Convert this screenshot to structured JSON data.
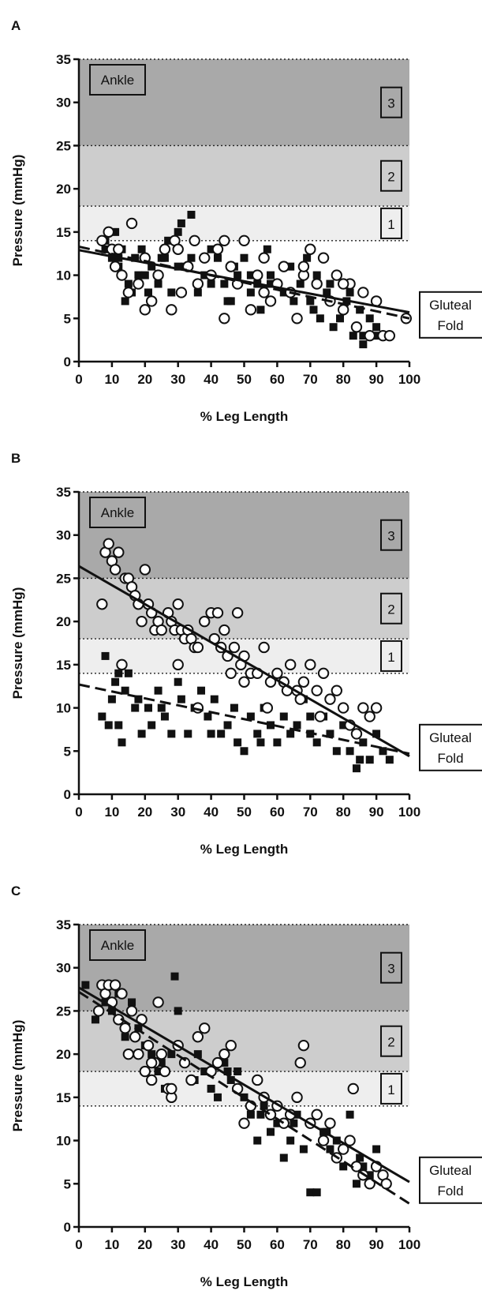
{
  "chart_data": [
    {
      "type": "scatter",
      "panel": "A",
      "xlabel": "% Leg Length",
      "ylabel": "Pressure (mmHg)",
      "xlim": [
        0,
        100
      ],
      "ylim": [
        0,
        35
      ],
      "xticks": [
        0,
        10,
        20,
        30,
        40,
        50,
        60,
        70,
        80,
        90,
        100
      ],
      "yticks": [
        0,
        5,
        10,
        15,
        20,
        25,
        30,
        35
      ],
      "zones": [
        {
          "label": "1",
          "from": 14,
          "to": 18,
          "color": "#eeeeee"
        },
        {
          "label": "2",
          "from": 18,
          "to": 25,
          "color": "#cdcdcd"
        },
        {
          "label": "3",
          "from": 25,
          "to": 35,
          "color": "#a9a9a9"
        }
      ],
      "annotations": {
        "ankle": "Ankle",
        "gluteal": [
          "Gluteal",
          "Fold"
        ]
      },
      "series": [
        {
          "marker": "square",
          "x": [
            8,
            10,
            11,
            12,
            13,
            14,
            15,
            17,
            18,
            19,
            21,
            22,
            24,
            25,
            27,
            28,
            30,
            31,
            32,
            34,
            36,
            38,
            40,
            42,
            44,
            45,
            47,
            48,
            50,
            52,
            54,
            55,
            57,
            58,
            60,
            62,
            64,
            65,
            67,
            69,
            71,
            72,
            73,
            75,
            77,
            79,
            81,
            83,
            85,
            86,
            88,
            90,
            8,
            12,
            16,
            20,
            26,
            30,
            34,
            40,
            46,
            52,
            58,
            64,
            70,
            76,
            82,
            86,
            90
          ],
          "y": [
            14,
            12,
            15,
            11,
            13,
            7,
            9,
            12,
            10,
            13,
            8,
            11,
            9,
            12,
            14,
            8,
            15,
            16,
            11,
            17,
            8,
            10,
            13,
            12,
            9,
            7,
            11,
            10,
            12,
            8,
            9,
            6,
            13,
            10,
            9,
            8,
            11,
            7,
            9,
            12,
            6,
            10,
            5,
            8,
            4,
            5,
            7,
            3,
            6,
            2,
            5,
            4,
            13,
            12,
            8,
            10,
            12,
            11,
            12,
            9,
            7,
            10,
            9,
            8,
            7,
            9,
            8,
            3,
            3
          ],
          "fit": [
            [
              0,
              13.3
            ],
            [
              100,
              5.0
            ]
          ]
        },
        {
          "marker": "circle",
          "x": [
            7,
            9,
            10,
            11,
            13,
            15,
            16,
            18,
            20,
            22,
            24,
            26,
            28,
            29,
            31,
            33,
            35,
            36,
            38,
            40,
            42,
            44,
            46,
            48,
            50,
            52,
            54,
            56,
            58,
            60,
            62,
            64,
            66,
            68,
            70,
            72,
            74,
            76,
            78,
            80,
            82,
            84,
            86,
            88,
            90,
            92,
            94,
            99,
            12,
            20,
            30,
            44,
            56,
            68,
            80
          ],
          "y": [
            14,
            15,
            13,
            11,
            10,
            8,
            16,
            9,
            12,
            7,
            10,
            13,
            6,
            14,
            8,
            11,
            14,
            9,
            12,
            10,
            13,
            5,
            11,
            9,
            14,
            6,
            10,
            12,
            7,
            9,
            11,
            8,
            5,
            10,
            13,
            9,
            12,
            7,
            10,
            6,
            9,
            4,
            8,
            3,
            7,
            3,
            3,
            5,
            13,
            6,
            13,
            14,
            8,
            11,
            9
          ],
          "fit": [
            [
              0,
              12.9
            ],
            [
              100,
              5.7
            ]
          ]
        }
      ]
    },
    {
      "type": "scatter",
      "panel": "B",
      "xlabel": "% Leg Length",
      "ylabel": "Pressure (mmHg)",
      "xlim": [
        0,
        100
      ],
      "ylim": [
        0,
        35
      ],
      "xticks": [
        0,
        10,
        20,
        30,
        40,
        50,
        60,
        70,
        80,
        90,
        100
      ],
      "yticks": [
        0,
        5,
        10,
        15,
        20,
        25,
        30,
        35
      ],
      "zones": [
        {
          "label": "1",
          "from": 14,
          "to": 18,
          "color": "#eeeeee"
        },
        {
          "label": "2",
          "from": 18,
          "to": 25,
          "color": "#cdcdcd"
        },
        {
          "label": "3",
          "from": 25,
          "to": 35,
          "color": "#a9a9a9"
        }
      ],
      "annotations": {
        "ankle": "Ankle",
        "gluteal": [
          "Gluteal",
          "Fold"
        ]
      },
      "series": [
        {
          "marker": "square",
          "x": [
            7,
            8,
            9,
            10,
            11,
            12,
            13,
            14,
            15,
            17,
            18,
            19,
            21,
            22,
            24,
            26,
            28,
            30,
            31,
            33,
            35,
            37,
            39,
            41,
            43,
            45,
            47,
            48,
            50,
            52,
            54,
            56,
            58,
            60,
            62,
            64,
            66,
            68,
            70,
            72,
            74,
            76,
            78,
            80,
            82,
            84,
            86,
            88,
            90,
            92,
            94,
            12,
            25,
            40,
            55,
            70,
            85
          ],
          "y": [
            9,
            16,
            8,
            11,
            13,
            8,
            6,
            12,
            14,
            10,
            11,
            7,
            10,
            8,
            12,
            9,
            7,
            13,
            11,
            7,
            10,
            12,
            9,
            11,
            7,
            8,
            10,
            6,
            5,
            9,
            7,
            10,
            8,
            6,
            9,
            7,
            8,
            11,
            7,
            6,
            9,
            7,
            5,
            8,
            5,
            3,
            6,
            4,
            7,
            5,
            4,
            14,
            10,
            7,
            6,
            9,
            4
          ],
          "fit": [
            [
              0,
              12.7
            ],
            [
              100,
              4.7
            ]
          ]
        },
        {
          "marker": "circle",
          "x": [
            7,
            8,
            9,
            10,
            11,
            12,
            13,
            14,
            15,
            16,
            17,
            18,
            19,
            20,
            21,
            22,
            23,
            24,
            25,
            27,
            28,
            29,
            30,
            31,
            32,
            33,
            34,
            35,
            36,
            38,
            40,
            41,
            42,
            43,
            44,
            45,
            46,
            47,
            48,
            49,
            50,
            52,
            54,
            56,
            58,
            60,
            62,
            64,
            66,
            68,
            70,
            72,
            74,
            76,
            78,
            80,
            82,
            84,
            86,
            88,
            90,
            30,
            36,
            50,
            57,
            63,
            67,
            73
          ],
          "y": [
            22,
            28,
            29,
            27,
            26,
            28,
            15,
            25,
            25,
            24,
            23,
            22,
            20,
            26,
            22,
            21,
            19,
            20,
            19,
            21,
            20,
            19,
            22,
            19,
            18,
            19,
            18,
            17,
            17,
            20,
            21,
            18,
            21,
            17,
            19,
            16,
            14,
            17,
            21,
            15,
            16,
            14,
            14,
            17,
            13,
            14,
            13,
            15,
            12,
            13,
            15,
            12,
            14,
            11,
            12,
            10,
            8,
            7,
            10,
            9,
            10,
            15,
            10,
            13,
            10,
            12,
            11,
            9
          ],
          "fit": [
            [
              0,
              26.4
            ],
            [
              100,
              4.4
            ]
          ]
        }
      ]
    },
    {
      "type": "scatter",
      "panel": "C",
      "xlabel": "% Leg Length",
      "ylabel": "Pressure (mmHg)",
      "xlim": [
        0,
        100
      ],
      "ylim": [
        0,
        35
      ],
      "xticks": [
        0,
        10,
        20,
        30,
        40,
        50,
        60,
        70,
        80,
        90,
        100
      ],
      "yticks": [
        0,
        5,
        10,
        15,
        20,
        25,
        30,
        35
      ],
      "zones": [
        {
          "label": "1",
          "from": 14,
          "to": 18,
          "color": "#eeeeee"
        },
        {
          "label": "2",
          "from": 18,
          "to": 25,
          "color": "#cdcdcd"
        },
        {
          "label": "3",
          "from": 25,
          "to": 35,
          "color": "#a9a9a9"
        }
      ],
      "annotations": {
        "ankle": "Ankle",
        "gluteal": [
          "Gluteal",
          "Fold"
        ]
      },
      "series": [
        {
          "marker": "square",
          "x": [
            2,
            5,
            8,
            10,
            12,
            14,
            16,
            18,
            20,
            22,
            24,
            26,
            28,
            29,
            30,
            32,
            34,
            36,
            38,
            40,
            42,
            44,
            46,
            48,
            50,
            52,
            54,
            56,
            58,
            60,
            62,
            64,
            66,
            68,
            70,
            72,
            74,
            76,
            78,
            80,
            82,
            84,
            86,
            88,
            90,
            25,
            35,
            45,
            55,
            65,
            75,
            85
          ],
          "y": [
            28,
            24,
            26,
            25,
            27,
            22,
            26,
            23,
            21,
            20,
            18,
            16,
            20,
            29,
            25,
            19,
            17,
            20,
            18,
            16,
            15,
            19,
            17,
            18,
            15,
            13,
            10,
            14,
            11,
            12,
            8,
            10,
            13,
            9,
            4,
            4,
            11,
            9,
            10,
            7,
            13,
            5,
            7,
            6,
            9,
            19,
            17,
            18,
            13,
            12,
            11,
            8
          ],
          "fit": [
            [
              0,
              27.2
            ],
            [
              100,
              2.7
            ]
          ]
        },
        {
          "marker": "circle",
          "x": [
            6,
            7,
            8,
            9,
            10,
            11,
            12,
            13,
            14,
            15,
            16,
            17,
            18,
            19,
            20,
            21,
            22,
            23,
            24,
            25,
            26,
            27,
            28,
            30,
            32,
            34,
            36,
            38,
            40,
            42,
            44,
            46,
            48,
            50,
            52,
            54,
            56,
            58,
            60,
            62,
            64,
            66,
            68,
            70,
            72,
            74,
            76,
            78,
            80,
            82,
            84,
            86,
            88,
            90,
            92,
            93,
            67,
            83,
            28,
            22
          ],
          "y": [
            25,
            28,
            27,
            28,
            26,
            28,
            24,
            27,
            23,
            20,
            25,
            22,
            20,
            24,
            18,
            21,
            17,
            19,
            26,
            20,
            18,
            16,
            15,
            21,
            19,
            17,
            22,
            23,
            18,
            19,
            20,
            21,
            16,
            12,
            14,
            17,
            15,
            13,
            14,
            12,
            13,
            15,
            21,
            12,
            13,
            10,
            12,
            8,
            9,
            10,
            7,
            6,
            5,
            7,
            6,
            5,
            19,
            16,
            16,
            19
          ],
          "fit": [
            [
              0,
              27.7
            ],
            [
              100,
              5.2
            ]
          ]
        }
      ]
    }
  ]
}
